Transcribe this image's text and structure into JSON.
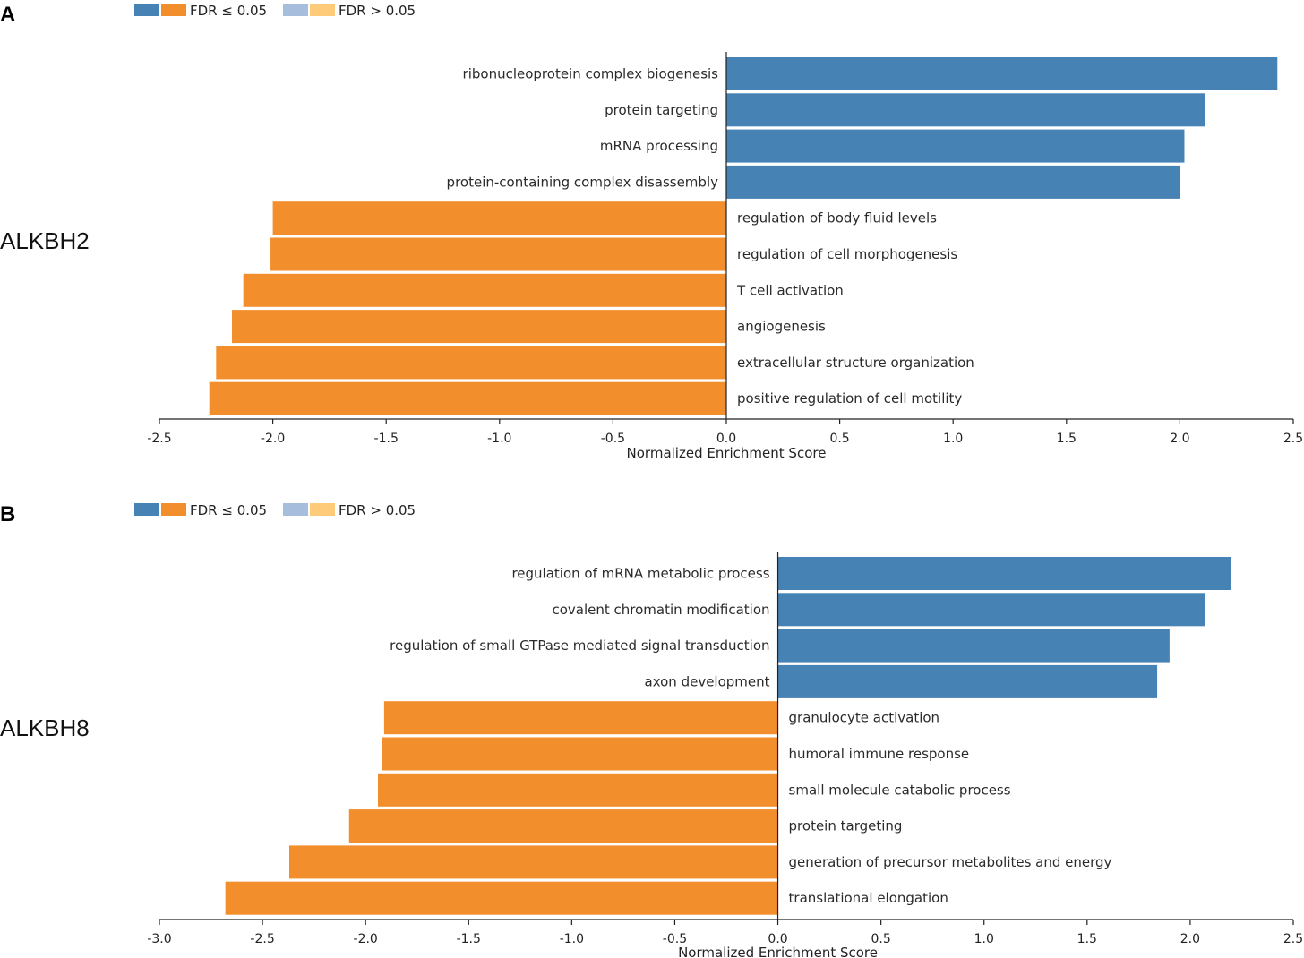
{
  "chart_data": [
    {
      "type": "bar",
      "orientation": "horizontal",
      "panel": "A",
      "gene": "ALKBH2",
      "legend": [
        {
          "label": "FDR ≤ 0.05",
          "colors": [
            "#4682b4",
            "#f28e2b"
          ]
        },
        {
          "label": "FDR > 0.05",
          "colors": [
            "#a6bddb",
            "#fdcb7a"
          ]
        }
      ],
      "xlabel": "Normalized Enrichment Score",
      "xlim": [
        -2.5,
        2.5
      ],
      "ticks": [
        -2.5,
        -2.0,
        -1.5,
        -1.0,
        -0.5,
        0.0,
        0.5,
        1.0,
        1.5,
        2.0,
        2.5
      ],
      "tick_labels": [
        "-2.5",
        "-2.0",
        "-1.5",
        "-1.0",
        "-0.5",
        "0.0",
        "0.5",
        "1.0",
        "1.5",
        "2.0",
        "2.5"
      ],
      "categories": [
        "ribonucleoprotein complex biogenesis",
        "protein targeting",
        "mRNA processing",
        "protein-containing complex disassembly",
        "regulation of body fluid levels",
        "regulation of cell morphogenesis",
        "T cell activation",
        "angiogenesis",
        "extracellular structure organization",
        "positive regulation of cell motility"
      ],
      "values": [
        2.43,
        2.11,
        2.02,
        2.0,
        -2.0,
        -2.01,
        -2.13,
        -2.18,
        -2.25,
        -2.28
      ],
      "positive_color": "#4682b4",
      "negative_color": "#f28e2b"
    },
    {
      "type": "bar",
      "orientation": "horizontal",
      "panel": "B",
      "gene": "ALKBH8",
      "legend": [
        {
          "label": "FDR ≤ 0.05",
          "colors": [
            "#4682b4",
            "#f28e2b"
          ]
        },
        {
          "label": "FDR > 0.05",
          "colors": [
            "#a6bddb",
            "#fdcb7a"
          ]
        }
      ],
      "xlabel": "Normalized Enrichment Score",
      "xlim": [
        -3.0,
        2.5
      ],
      "ticks": [
        -3.0,
        -2.5,
        -2.0,
        -1.5,
        -1.0,
        -0.5,
        0.0,
        0.5,
        1.0,
        1.5,
        2.0,
        2.5
      ],
      "tick_labels": [
        "-3.0",
        "-2.5",
        "-2.0",
        "-1.5",
        "-1.0",
        "-0.5",
        "0.0",
        "0.5",
        "1.0",
        "1.5",
        "2.0",
        "2.5"
      ],
      "categories": [
        "regulation of mRNA metabolic process",
        "covalent chromatin modification",
        "regulation of small GTPase mediated signal transduction",
        "axon development",
        "granulocyte activation",
        "humoral immune response",
        "small molecule catabolic process",
        "protein targeting",
        "generation of precursor metabolites and energy",
        "translational elongation"
      ],
      "values": [
        2.2,
        2.07,
        1.9,
        1.84,
        -1.91,
        -1.92,
        -1.94,
        -2.08,
        -2.37,
        -2.68
      ],
      "positive_color": "#4682b4",
      "negative_color": "#f28e2b"
    }
  ]
}
